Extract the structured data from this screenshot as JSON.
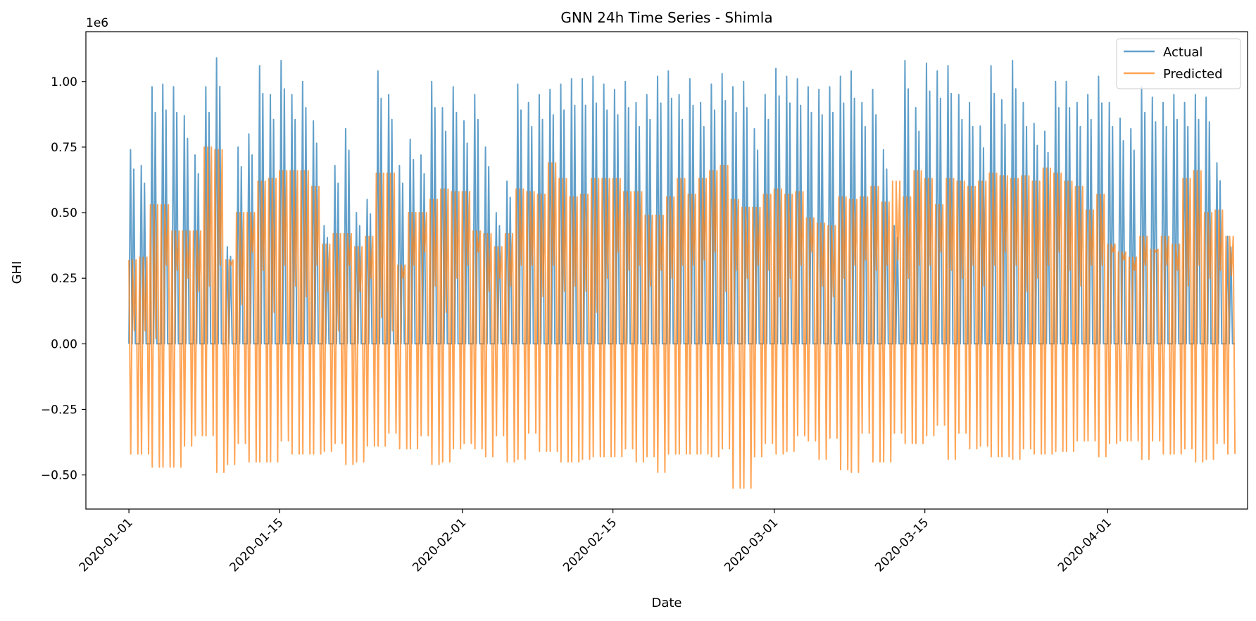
{
  "chart_data": {
    "type": "line",
    "title": "GNN 24h Time Series - Shimla",
    "xlabel": "Date",
    "ylabel": "GHI",
    "y_offset_label": "1e6",
    "y_multiplier": 1000000,
    "x_range": [
      "2019-12-28",
      "2020-04-14"
    ],
    "ylim": [
      -0.63,
      1.19
    ],
    "x_ticks": [
      "2020-01-01",
      "2020-01-15",
      "2020-02-01",
      "2020-02-15",
      "2020-03-01",
      "2020-03-15",
      "2020-04-01"
    ],
    "y_ticks": [
      -0.5,
      -0.25,
      0.0,
      0.25,
      0.5,
      0.75,
      1.0
    ],
    "y_tick_labels": [
      "−0.50",
      "−0.25",
      "0.00",
      "0.25",
      "0.50",
      "0.75",
      "1.00"
    ],
    "grid": false,
    "legend": "top-right",
    "x_tick_rotation": 45,
    "series": [
      {
        "name": "Actual",
        "color": "#1f77b4",
        "opacity": 0.7,
        "daily_peaks": [
          0.74,
          0.68,
          0.98,
          0.99,
          0.98,
          0.87,
          0.72,
          0.98,
          1.09,
          0.37,
          0.75,
          0.8,
          1.06,
          0.95,
          1.08,
          0.95,
          1.0,
          0.85,
          0.45,
          0.68,
          0.82,
          0.5,
          0.55,
          1.04,
          0.95,
          0.68,
          0.78,
          0.72,
          1.0,
          0.9,
          0.98,
          0.85,
          0.95,
          0.75,
          0.5,
          0.62,
          0.99,
          0.92,
          0.95,
          0.97,
          0.99,
          1.01,
          1.01,
          1.02,
          0.99,
          0.97,
          1.0,
          0.92,
          0.95,
          1.02,
          1.04,
          0.95,
          1.01,
          0.92,
          0.99,
          1.03,
          0.98,
          1.0,
          0.82,
          0.95,
          1.05,
          1.02,
          1.01,
          0.98,
          0.97,
          0.98,
          1.02,
          1.04,
          0.92,
          0.97,
          0.74,
          0.45,
          1.08,
          0.9,
          1.07,
          1.04,
          1.06,
          0.95,
          0.92,
          0.83,
          1.06,
          0.93,
          1.08,
          0.92,
          0.84,
          0.81,
          1.0,
          1.0,
          0.92,
          0.95,
          1.02,
          0.92,
          0.86,
          0.82,
          0.98,
          0.94,
          0.92,
          0.95,
          0.92,
          0.95,
          0.94,
          0.69,
          0.41
        ],
        "daily_lows": [
          0.0,
          0.0,
          0.0,
          0.0,
          0.0,
          0.0,
          0.0,
          0.0,
          0.0,
          0.0,
          0.0,
          0.0,
          0.0,
          0.0,
          0.0,
          0.0,
          0.0,
          0.0,
          0.0,
          0.0,
          0.0,
          0.0,
          0.0,
          0.0,
          0.0,
          0.0,
          0.0,
          0.0,
          0.0,
          0.0,
          0.0,
          0.0,
          0.0,
          0.0,
          0.0,
          0.0,
          0.0,
          0.0,
          0.0,
          0.0,
          0.0,
          0.0,
          0.0,
          0.0,
          0.0,
          0.0,
          0.0,
          0.0,
          0.0,
          0.0,
          0.0,
          0.0,
          0.0,
          0.0,
          0.0,
          0.0,
          0.0,
          0.0,
          0.0,
          0.0,
          0.0,
          0.0,
          0.0,
          0.0,
          0.0,
          0.0,
          0.0,
          0.0,
          0.0,
          0.0,
          0.0,
          0.0,
          0.0,
          0.0,
          0.0,
          0.0,
          0.0,
          0.0,
          0.0,
          0.0,
          0.0,
          0.0,
          0.0,
          0.0,
          0.0,
          0.0,
          0.0,
          0.0,
          0.0,
          0.0,
          0.0,
          0.0,
          0.0,
          0.0,
          0.0,
          0.0,
          0.0,
          0.0,
          0.0,
          0.0,
          0.0,
          0.0,
          0.0
        ]
      },
      {
        "name": "Predicted",
        "color": "#ff7f0e",
        "opacity": 0.7,
        "daily_peaks": [
          0.32,
          0.33,
          0.53,
          0.53,
          0.43,
          0.43,
          0.43,
          0.75,
          0.74,
          0.32,
          0.5,
          0.5,
          0.62,
          0.63,
          0.66,
          0.66,
          0.66,
          0.6,
          0.38,
          0.42,
          0.42,
          0.37,
          0.41,
          0.65,
          0.65,
          0.3,
          0.5,
          0.5,
          0.55,
          0.59,
          0.58,
          0.58,
          0.43,
          0.42,
          0.37,
          0.42,
          0.59,
          0.58,
          0.57,
          0.69,
          0.63,
          0.56,
          0.57,
          0.63,
          0.63,
          0.63,
          0.58,
          0.58,
          0.49,
          0.49,
          0.56,
          0.63,
          0.57,
          0.63,
          0.66,
          0.68,
          0.55,
          0.52,
          0.52,
          0.57,
          0.59,
          0.57,
          0.58,
          0.48,
          0.46,
          0.45,
          0.56,
          0.55,
          0.56,
          0.6,
          0.54,
          0.62,
          0.56,
          0.66,
          0.63,
          0.53,
          0.63,
          0.62,
          0.6,
          0.62,
          0.65,
          0.64,
          0.63,
          0.64,
          0.62,
          0.67,
          0.65,
          0.62,
          0.6,
          0.51,
          0.57,
          0.38,
          0.35,
          0.33,
          0.41,
          0.36,
          0.41,
          0.38,
          0.63,
          0.66,
          0.5,
          0.51,
          0.41
        ],
        "daily_lows": [
          -0.42,
          -0.42,
          -0.47,
          -0.47,
          -0.47,
          -0.39,
          -0.35,
          -0.35,
          -0.49,
          -0.46,
          -0.38,
          -0.45,
          -0.45,
          -0.45,
          -0.37,
          -0.42,
          -0.42,
          -0.42,
          -0.41,
          -0.38,
          -0.46,
          -0.45,
          -0.39,
          -0.39,
          -0.34,
          -0.4,
          -0.4,
          -0.35,
          -0.46,
          -0.45,
          -0.4,
          -0.38,
          -0.4,
          -0.43,
          -0.35,
          -0.45,
          -0.44,
          -0.34,
          -0.41,
          -0.41,
          -0.45,
          -0.45,
          -0.44,
          -0.43,
          -0.43,
          -0.43,
          -0.4,
          -0.45,
          -0.43,
          -0.49,
          -0.42,
          -0.42,
          -0.42,
          -0.42,
          -0.43,
          -0.4,
          -0.55,
          -0.55,
          -0.43,
          -0.38,
          -0.42,
          -0.41,
          -0.35,
          -0.37,
          -0.44,
          -0.36,
          -0.48,
          -0.49,
          -0.34,
          -0.45,
          -0.45,
          -0.34,
          -0.38,
          -0.38,
          -0.35,
          -0.31,
          -0.44,
          -0.34,
          -0.4,
          -0.39,
          -0.43,
          -0.43,
          -0.44,
          -0.4,
          -0.42,
          -0.42,
          -0.41,
          -0.41,
          -0.37,
          -0.37,
          -0.43,
          -0.38,
          -0.37,
          -0.37,
          -0.44,
          -0.37,
          -0.42,
          -0.42,
          -0.4,
          -0.45,
          -0.44,
          -0.38,
          -0.42
        ],
        "daily_dips": [
          0.05,
          0.05,
          0.02,
          0.3,
          0.28,
          0.25,
          0.2,
          0.22,
          0.3,
          0.3,
          0.15,
          0.35,
          0.28,
          0.12,
          0.3,
          0.22,
          0.18,
          0.3,
          0.2,
          0.05,
          0.3,
          0.2,
          0.25,
          0.1,
          0.05,
          0.25,
          0.3,
          0.35,
          0.22,
          0.12,
          0.25,
          0.3,
          0.35,
          0.2,
          0.25,
          0.22,
          0.3,
          0.3,
          0.18,
          0.3,
          0.2,
          0.22,
          0.2,
          0.12,
          0.25,
          0.35,
          0.28,
          0.3,
          0.22,
          0.28,
          0.25,
          0.3,
          0.3,
          0.32,
          0.35,
          0.2,
          0.28,
          0.25,
          0.3,
          0.28,
          0.18,
          0.25,
          0.3,
          0.35,
          0.22,
          0.18,
          0.25,
          0.3,
          0.32,
          0.28,
          0.3,
          0.32,
          0.25,
          0.3,
          0.3,
          0.35,
          0.28,
          0.25,
          0.3,
          0.22,
          0.3,
          0.35,
          0.3,
          0.2,
          0.25,
          0.3,
          0.35,
          0.28,
          0.22,
          0.3,
          0.3,
          0.35,
          0.32,
          0.28,
          0.3,
          0.35,
          0.3,
          0.28,
          0.22,
          0.3,
          0.25,
          0.28,
          0.26
        ]
      }
    ]
  }
}
